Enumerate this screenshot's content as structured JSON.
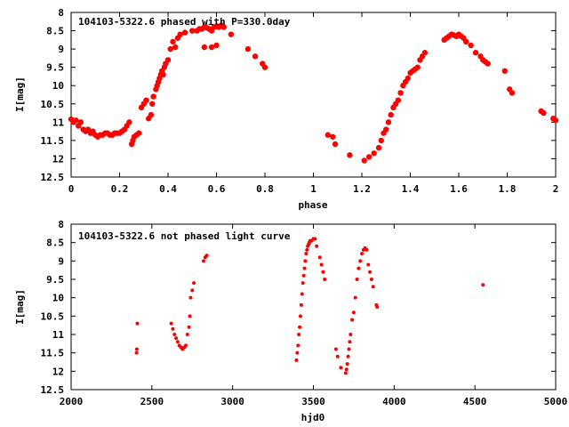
{
  "chart_data": [
    {
      "type": "scatter",
      "title": "104103-5322.6 phased with P=330.0day",
      "xlabel": "phase",
      "ylabel": "I[mag]",
      "xlim": [
        0,
        2
      ],
      "ylim": [
        12.5,
        8
      ],
      "y_inverted": true,
      "grid": false,
      "xticks": [
        "0",
        "0.2",
        "0.4",
        "0.6",
        "0.8",
        "1",
        "1.2",
        "1.4",
        "1.6",
        "1.8",
        "2"
      ],
      "yticks": [
        "8",
        "8.5",
        "9",
        "9.5",
        "10",
        "10.5",
        "11",
        "11.5",
        "12",
        "12.5"
      ],
      "marker_color": "#ff0000",
      "series": [
        {
          "x": [
            0.0,
            0.01,
            0.02,
            0.03,
            0.04,
            0.05,
            0.06,
            0.07,
            0.08,
            0.09,
            0.1,
            0.11,
            0.12,
            0.13,
            0.14,
            0.15,
            0.16,
            0.17,
            0.18,
            0.19,
            0.2,
            0.21,
            0.22,
            0.23,
            0.24,
            0.25,
            0.255,
            0.26,
            0.27,
            0.28,
            0.29,
            0.3,
            0.31,
            0.32,
            0.33,
            0.335,
            0.34,
            0.35,
            0.355,
            0.36,
            0.365,
            0.37,
            0.375,
            0.38,
            0.385,
            0.39,
            0.4,
            0.41,
            0.42,
            0.43,
            0.44,
            0.45,
            0.47,
            0.5,
            0.52,
            0.53,
            0.54,
            0.55,
            0.56,
            0.57,
            0.58,
            0.59,
            0.6,
            0.61,
            0.62,
            0.55,
            0.58,
            0.6,
            0.63,
            0.66,
            0.73,
            0.76,
            0.79,
            0.8,
            1.06,
            1.08,
            1.09,
            1.15,
            1.21,
            1.23,
            1.25,
            1.27,
            1.28,
            1.29,
            1.3,
            1.31,
            1.32,
            1.33,
            1.34,
            1.35,
            1.36,
            1.37,
            1.38,
            1.39,
            1.4,
            1.41,
            1.42,
            1.43,
            1.44,
            1.45,
            1.46,
            1.54,
            1.55,
            1.56,
            1.57,
            1.58,
            1.59,
            1.6,
            1.61,
            1.62,
            1.63,
            1.65,
            1.67,
            1.69,
            1.7,
            1.71,
            1.72,
            1.79,
            1.81,
            1.82,
            1.94,
            1.95,
            1.99,
            2.0
          ],
          "y": [
            10.92,
            11.0,
            10.95,
            11.1,
            11.0,
            11.2,
            11.25,
            11.2,
            11.3,
            11.25,
            11.35,
            11.4,
            11.35,
            11.35,
            11.3,
            11.3,
            11.35,
            11.35,
            11.3,
            11.3,
            11.3,
            11.25,
            11.2,
            11.1,
            11.0,
            11.6,
            11.5,
            11.4,
            11.35,
            11.3,
            10.6,
            10.5,
            10.4,
            10.9,
            10.8,
            10.5,
            10.3,
            10.1,
            10.0,
            9.9,
            9.8,
            9.7,
            9.6,
            9.7,
            9.5,
            9.4,
            9.3,
            9.0,
            8.8,
            8.95,
            8.7,
            8.6,
            8.55,
            8.5,
            8.5,
            8.45,
            8.45,
            8.4,
            8.42,
            8.45,
            8.5,
            8.4,
            8.38,
            8.4,
            8.35,
            8.95,
            8.95,
            8.9,
            8.4,
            8.6,
            9.0,
            9.2,
            9.4,
            9.5,
            11.35,
            11.4,
            11.6,
            11.9,
            12.05,
            11.95,
            11.85,
            11.7,
            11.5,
            11.3,
            11.2,
            11.0,
            10.8,
            10.6,
            10.5,
            10.4,
            10.2,
            10.0,
            9.9,
            9.8,
            9.65,
            9.6,
            9.55,
            9.5,
            9.3,
            9.2,
            9.1,
            8.75,
            8.7,
            8.65,
            8.6,
            8.62,
            8.65,
            8.6,
            8.65,
            8.7,
            8.8,
            8.9,
            9.1,
            9.2,
            9.3,
            9.35,
            9.4,
            9.6,
            10.1,
            10.2,
            10.7,
            10.75,
            10.9,
            10.95
          ]
        }
      ]
    },
    {
      "type": "scatter",
      "title": "104103-5322.6 not phased light curve",
      "xlabel": "hjd0",
      "ylabel": "I[mag]",
      "xlim": [
        2000,
        5000
      ],
      "ylim": [
        12.5,
        8
      ],
      "y_inverted": true,
      "grid": false,
      "xticks": [
        "2000",
        "2500",
        "3000",
        "3500",
        "4000",
        "4500",
        "5000"
      ],
      "yticks": [
        "8",
        "8.5",
        "9",
        "9.5",
        "10",
        "10.5",
        "11",
        "11.5",
        "12",
        "12.5"
      ],
      "marker_color": "#ff0000",
      "series": [
        {
          "x": [
            2405,
            2407,
            2410,
            2620,
            2630,
            2640,
            2650,
            2660,
            2670,
            2680,
            2690,
            2700,
            2710,
            2720,
            2730,
            2735,
            2740,
            2750,
            2760,
            2820,
            2830,
            2840,
            3395,
            3400,
            3405,
            3410,
            3415,
            3420,
            3425,
            3430,
            3435,
            3440,
            3445,
            3450,
            3455,
            3460,
            3465,
            3470,
            3475,
            3480,
            3490,
            3500,
            3510,
            3520,
            3540,
            3550,
            3560,
            3570,
            3640,
            3650,
            3670,
            3700,
            3705,
            3710,
            3715,
            3720,
            3725,
            3730,
            3740,
            3750,
            3760,
            3770,
            3780,
            3790,
            3800,
            3810,
            3820,
            3830,
            3840,
            3850,
            3860,
            3870,
            3890,
            3895,
            4550
          ],
          "y": [
            11.5,
            11.4,
            10.7,
            10.7,
            10.85,
            11.0,
            11.1,
            11.2,
            11.3,
            11.35,
            11.4,
            11.35,
            11.3,
            11.0,
            10.8,
            10.5,
            10.0,
            9.8,
            9.6,
            9.0,
            8.9,
            8.85,
            11.7,
            11.5,
            11.3,
            11.0,
            10.8,
            10.5,
            10.2,
            9.9,
            9.6,
            9.4,
            9.2,
            9.0,
            8.8,
            8.7,
            8.6,
            8.55,
            8.5,
            8.45,
            8.45,
            8.4,
            8.4,
            8.6,
            8.9,
            9.1,
            9.3,
            9.5,
            11.4,
            11.6,
            11.9,
            12.05,
            11.95,
            11.8,
            11.6,
            11.4,
            11.2,
            11.0,
            10.6,
            10.4,
            10.0,
            9.5,
            9.2,
            9.0,
            8.8,
            8.7,
            8.65,
            8.7,
            9.1,
            9.3,
            9.5,
            9.7,
            10.2,
            10.25,
            9.65
          ]
        }
      ]
    }
  ]
}
